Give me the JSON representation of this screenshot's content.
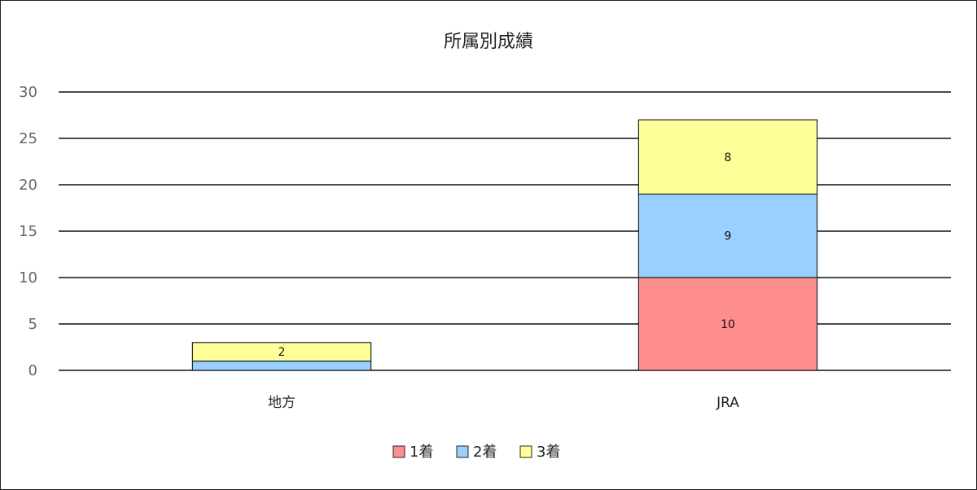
{
  "chart_data": {
    "type": "bar",
    "stacked": true,
    "title": "所属別成績",
    "categories": [
      "地方",
      "JRA"
    ],
    "series": [
      {
        "name": "1着",
        "values": [
          0,
          10
        ],
        "color": "#ff8f8f",
        "labels": [
          "",
          "10"
        ]
      },
      {
        "name": "2着",
        "values": [
          1,
          9
        ],
        "color": "#99d0ff",
        "labels": [
          "",
          "9"
        ]
      },
      {
        "name": "3着",
        "values": [
          2,
          8
        ],
        "color": "#ffff99",
        "labels": [
          "2",
          "8"
        ]
      }
    ],
    "ylim": [
      0,
      30
    ],
    "yticks": [
      "0",
      "5",
      "10",
      "15",
      "20",
      "25",
      "30"
    ],
    "grid": true,
    "legend": "bottom"
  }
}
